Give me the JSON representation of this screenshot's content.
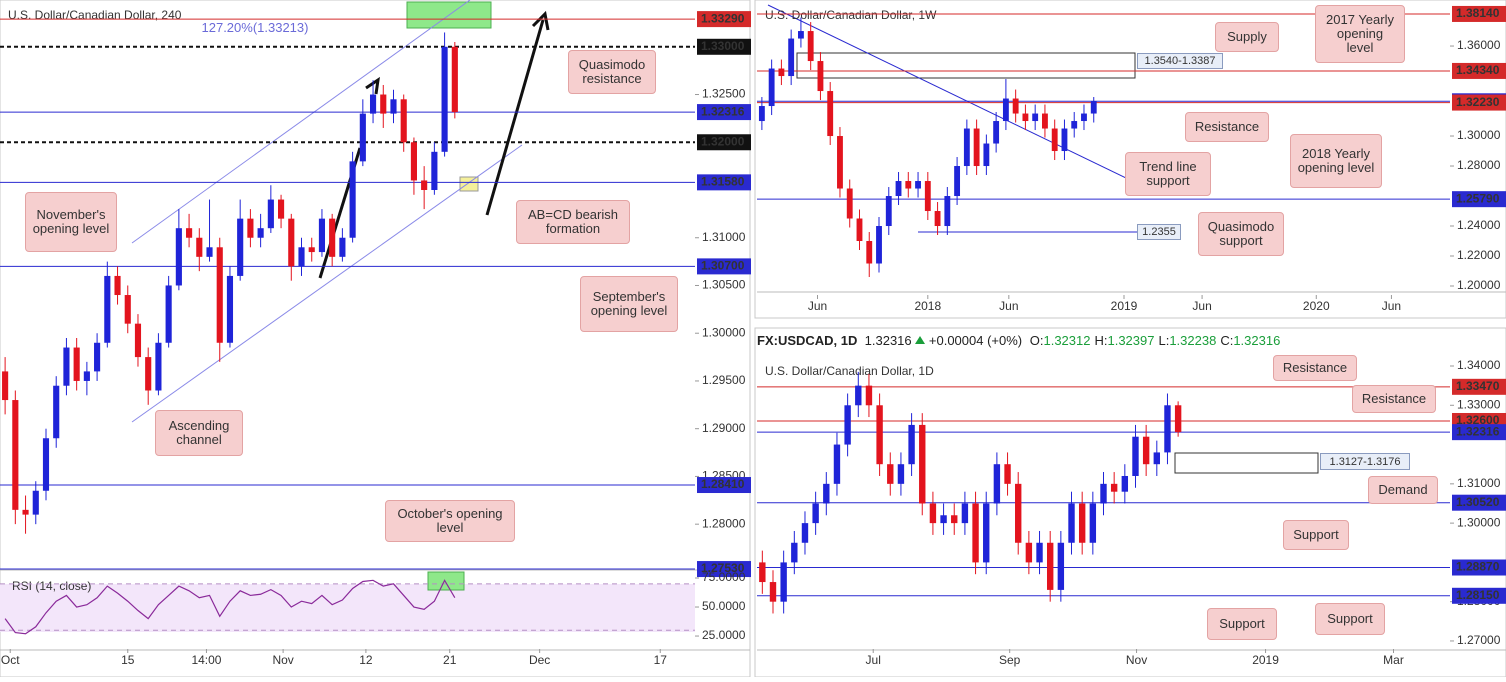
{
  "chart_data": [
    {
      "type": "candlestick",
      "title": "U.S. Dollar/Canadian Dollar, 240",
      "up_color": "#1f24d8",
      "down_color": "#e3141e",
      "ylim": [
        1.2752,
        1.3349
      ],
      "yticks": [
        {
          "value": 1.325,
          "label": "1.32500"
        },
        {
          "value": 1.31,
          "label": "1.31000"
        },
        {
          "value": 1.305,
          "label": "1.30500"
        },
        {
          "value": 1.3,
          "label": "1.30000"
        },
        {
          "value": 1.295,
          "label": "1.29500"
        },
        {
          "value": 1.29,
          "label": "1.29000"
        },
        {
          "value": 1.285,
          "label": "1.28500"
        },
        {
          "value": 1.28,
          "label": "1.28000"
        }
      ],
      "xlim": [
        0,
        68
      ],
      "xticks": [
        {
          "value": 1,
          "label": "Oct"
        },
        {
          "value": 12.5,
          "label": "15"
        },
        {
          "value": 20.2,
          "label": "14:00"
        },
        {
          "value": 27.7,
          "label": "Nov"
        },
        {
          "value": 35.8,
          "label": "12"
        },
        {
          "value": 44,
          "label": "21"
        },
        {
          "value": 52.8,
          "label": "Dec"
        },
        {
          "value": 64.6,
          "label": "17"
        }
      ],
      "levels": [
        {
          "value": 1.3329,
          "label": "1.33290",
          "color": "#d42a2a"
        },
        {
          "value": 1.33,
          "label": "1.33000",
          "color": "#111111"
        },
        {
          "value": 1.32316,
          "label": "1.32316",
          "color": "#2a2ad0"
        },
        {
          "value": 1.32,
          "label": "1.32000",
          "color": "#111111"
        },
        {
          "value": 1.3158,
          "label": "1.31580",
          "color": "#2a2ad0"
        },
        {
          "value": 1.307,
          "label": "1.30700",
          "color": "#2a2ad0"
        },
        {
          "value": 1.2841,
          "label": "1.28410",
          "color": "#2a2ad0"
        },
        {
          "value": 1.2753,
          "label": "1.27530",
          "color": "#2a2ad0"
        }
      ],
      "annotations": [
        "127.20%(1.33213)",
        "Quasimodo resistance",
        "November's opening level",
        "AB=CD bearish formation",
        "September's opening level",
        "Ascending channel",
        "October's opening level"
      ],
      "candles": [
        [
          1.296,
          1.2975,
          1.2915,
          1.293
        ],
        [
          1.293,
          1.294,
          1.28,
          1.2815
        ],
        [
          1.2815,
          1.283,
          1.279,
          1.281
        ],
        [
          1.281,
          1.2845,
          1.28,
          1.2835
        ],
        [
          1.2835,
          1.29,
          1.2825,
          1.289
        ],
        [
          1.289,
          1.2955,
          1.288,
          1.2945
        ],
        [
          1.2945,
          1.2995,
          1.2935,
          1.2985
        ],
        [
          1.2985,
          1.2995,
          1.294,
          1.295
        ],
        [
          1.295,
          1.297,
          1.2935,
          1.296
        ],
        [
          1.296,
          1.3,
          1.295,
          1.299
        ],
        [
          1.299,
          1.3075,
          1.2985,
          1.306
        ],
        [
          1.306,
          1.307,
          1.303,
          1.304
        ],
        [
          1.304,
          1.305,
          1.3,
          1.301
        ],
        [
          1.301,
          1.302,
          1.2965,
          1.2975
        ],
        [
          1.2975,
          1.2985,
          1.2925,
          1.294
        ],
        [
          1.294,
          1.3,
          1.2935,
          1.299
        ],
        [
          1.299,
          1.306,
          1.2985,
          1.305
        ],
        [
          1.305,
          1.313,
          1.3045,
          1.311
        ],
        [
          1.311,
          1.3125,
          1.309,
          1.31
        ],
        [
          1.31,
          1.311,
          1.3065,
          1.308
        ],
        [
          1.308,
          1.314,
          1.3075,
          1.309
        ],
        [
          1.309,
          1.31,
          1.297,
          1.299
        ],
        [
          1.299,
          1.307,
          1.2985,
          1.306
        ],
        [
          1.306,
          1.314,
          1.3055,
          1.312
        ],
        [
          1.312,
          1.313,
          1.309,
          1.31
        ],
        [
          1.31,
          1.3125,
          1.309,
          1.311
        ],
        [
          1.311,
          1.3155,
          1.3105,
          1.314
        ],
        [
          1.314,
          1.3145,
          1.311,
          1.312
        ],
        [
          1.312,
          1.3125,
          1.3055,
          1.307
        ],
        [
          1.307,
          1.31,
          1.306,
          1.309
        ],
        [
          1.309,
          1.31,
          1.3075,
          1.3085
        ],
        [
          1.3085,
          1.313,
          1.308,
          1.312
        ],
        [
          1.312,
          1.3125,
          1.307,
          1.308
        ],
        [
          1.308,
          1.311,
          1.3075,
          1.31
        ],
        [
          1.31,
          1.319,
          1.3095,
          1.318
        ],
        [
          1.318,
          1.3245,
          1.3175,
          1.323
        ],
        [
          1.323,
          1.3265,
          1.322,
          1.325
        ],
        [
          1.325,
          1.326,
          1.3215,
          1.323
        ],
        [
          1.323,
          1.3255,
          1.322,
          1.3245
        ],
        [
          1.3245,
          1.325,
          1.319,
          1.32
        ],
        [
          1.32,
          1.3205,
          1.3145,
          1.316
        ],
        [
          1.316,
          1.3175,
          1.313,
          1.315
        ],
        [
          1.315,
          1.32,
          1.3145,
          1.319
        ],
        [
          1.319,
          1.3315,
          1.3185,
          1.33
        ],
        [
          1.33,
          1.3305,
          1.3225,
          1.32316
        ]
      ]
    },
    {
      "type": "line",
      "title": "RSI (14, close)",
      "color": "#8a2a9a",
      "ylim": [
        14.7,
        81.9
      ],
      "bands": [
        30,
        70
      ],
      "xlim": [
        0,
        68
      ],
      "yticks": [
        {
          "value": 75,
          "label": "75.0000"
        },
        {
          "value": 50,
          "label": "50.0000"
        },
        {
          "value": 25,
          "label": "25.0000"
        }
      ],
      "values": [
        40,
        28,
        27,
        33,
        45,
        55,
        60,
        50,
        52,
        58,
        68,
        62,
        55,
        47,
        40,
        52,
        60,
        68,
        64,
        58,
        60,
        42,
        55,
        64,
        60,
        61,
        65,
        60,
        50,
        55,
        53,
        60,
        52,
        56,
        66,
        72,
        73,
        68,
        70,
        60,
        50,
        48,
        55,
        73,
        58
      ]
    },
    {
      "type": "candlestick",
      "title": "U.S. Dollar/Canadian Dollar, 1W",
      "up_color": "#1f24d8",
      "down_color": "#e3141e",
      "ylim": [
        1.196,
        1.3907
      ],
      "yticks": [
        {
          "value": 1.36,
          "label": "1.36000"
        },
        {
          "value": 1.3,
          "label": "1.30000"
        },
        {
          "value": 1.28,
          "label": "1.28000"
        },
        {
          "value": 1.24,
          "label": "1.24000"
        },
        {
          "value": 1.22,
          "label": "1.22000"
        },
        {
          "value": 1.2,
          "label": "1.20000"
        }
      ],
      "xlim": [
        0,
        71
      ],
      "xticks": [
        {
          "value": 6.2,
          "label": "Jun"
        },
        {
          "value": 17.5,
          "label": "2018"
        },
        {
          "value": 25.8,
          "label": "Jun"
        },
        {
          "value": 37.6,
          "label": "2019"
        },
        {
          "value": 45.6,
          "label": "Jun"
        },
        {
          "value": 57.3,
          "label": "2020"
        },
        {
          "value": 65,
          "label": "Jun"
        }
      ],
      "levels": [
        {
          "value": 1.3814,
          "label": "1.38140",
          "color": "#d42a2a"
        },
        {
          "value": 1.3434,
          "label": "1.34340",
          "color": "#d42a2a"
        },
        {
          "value": 1.32316,
          "label": "1.32316",
          "color": "#2a2ad0"
        },
        {
          "value": 1.3223,
          "label": "1.32230",
          "color": "#d42a2a"
        },
        {
          "value": 1.2579,
          "label": "1.25790",
          "color": "#2a2ad0"
        }
      ],
      "annotations": [
        "Supply",
        "2017 Yearly opening level",
        "Resistance",
        "Trend line support",
        "2018 Yearly opening level",
        "Quasimodo support",
        "1.3540-1.3387",
        "1.2355"
      ],
      "candles": [
        [
          1.31,
          1.326,
          1.304,
          1.32
        ],
        [
          1.32,
          1.351,
          1.314,
          1.345
        ],
        [
          1.345,
          1.351,
          1.334,
          1.34
        ],
        [
          1.34,
          1.371,
          1.334,
          1.365
        ],
        [
          1.365,
          1.379,
          1.359,
          1.37
        ],
        [
          1.37,
          1.376,
          1.344,
          1.35
        ],
        [
          1.35,
          1.356,
          1.324,
          1.33
        ],
        [
          1.33,
          1.336,
          1.294,
          1.3
        ],
        [
          1.3,
          1.306,
          1.259,
          1.265
        ],
        [
          1.265,
          1.271,
          1.239,
          1.245
        ],
        [
          1.245,
          1.251,
          1.224,
          1.23
        ],
        [
          1.23,
          1.236,
          1.206,
          1.215
        ],
        [
          1.215,
          1.246,
          1.209,
          1.24
        ],
        [
          1.24,
          1.266,
          1.234,
          1.26
        ],
        [
          1.26,
          1.276,
          1.254,
          1.27
        ],
        [
          1.27,
          1.276,
          1.259,
          1.265
        ],
        [
          1.265,
          1.276,
          1.259,
          1.27
        ],
        [
          1.27,
          1.276,
          1.244,
          1.25
        ],
        [
          1.25,
          1.256,
          1.234,
          1.24
        ],
        [
          1.24,
          1.266,
          1.234,
          1.26
        ],
        [
          1.26,
          1.286,
          1.254,
          1.28
        ],
        [
          1.28,
          1.311,
          1.274,
          1.305
        ],
        [
          1.305,
          1.311,
          1.274,
          1.28
        ],
        [
          1.28,
          1.301,
          1.274,
          1.295
        ],
        [
          1.295,
          1.316,
          1.289,
          1.31
        ],
        [
          1.31,
          1.338,
          1.304,
          1.325
        ],
        [
          1.325,
          1.331,
          1.309,
          1.315
        ],
        [
          1.315,
          1.321,
          1.304,
          1.31
        ],
        [
          1.31,
          1.321,
          1.304,
          1.315
        ],
        [
          1.315,
          1.321,
          1.299,
          1.305
        ],
        [
          1.305,
          1.311,
          1.284,
          1.29
        ],
        [
          1.29,
          1.311,
          1.284,
          1.305
        ],
        [
          1.305,
          1.316,
          1.299,
          1.31
        ],
        [
          1.31,
          1.321,
          1.304,
          1.315
        ],
        [
          1.315,
          1.326,
          1.309,
          1.32316
        ]
      ]
    },
    {
      "type": "candlestick",
      "title": "U.S. Dollar/Canadian Dollar, 1D",
      "up_color": "#1f24d8",
      "down_color": "#e3141e",
      "quote": {
        "ticker": "FX:USDCAD, 1D",
        "last": "1.32316",
        "change": "+0.00004 (+0%)",
        "ohlc": [
          {
            "label": "O:",
            "value": "1.32312"
          },
          {
            "label": "H:",
            "value": "1.32397"
          },
          {
            "label": "L:",
            "value": "1.32238"
          },
          {
            "label": "C:",
            "value": "1.32316"
          }
        ]
      },
      "ylim": [
        1.2677,
        1.3428
      ],
      "yticks": [
        {
          "value": 1.34,
          "label": "1.34000"
        },
        {
          "value": 1.33,
          "label": "1.33000"
        },
        {
          "value": 1.31,
          "label": "1.31000"
        },
        {
          "value": 1.3,
          "label": "1.30000"
        },
        {
          "value": 1.28,
          "label": "1.28000"
        },
        {
          "value": 1.27,
          "label": "1.27000"
        }
      ],
      "xlim": [
        0,
        65
      ],
      "xticks": [
        {
          "value": 10.9,
          "label": "Jul"
        },
        {
          "value": 23.7,
          "label": "Sep"
        },
        {
          "value": 35.6,
          "label": "Nov"
        },
        {
          "value": 47.7,
          "label": "2019"
        },
        {
          "value": 59.7,
          "label": "Mar"
        }
      ],
      "levels": [
        {
          "value": 1.3347,
          "label": "1.33470",
          "color": "#d42a2a"
        },
        {
          "value": 1.326,
          "label": "1.32600",
          "color": "#d42a2a"
        },
        {
          "value": 1.32316,
          "label": "1.32316",
          "color": "#2a2ad0"
        },
        {
          "value": 1.3052,
          "label": "1.30520",
          "color": "#2a2ad0"
        },
        {
          "value": 1.2887,
          "label": "1.28870",
          "color": "#2a2ad0"
        },
        {
          "value": 1.2815,
          "label": "1.28150",
          "color": "#2a2ad0"
        }
      ],
      "annotations": [
        "Resistance",
        "Resistance",
        "1.3127-1.3176",
        "Demand",
        "Support",
        "Support",
        "Support"
      ],
      "candles": [
        [
          1.29,
          1.293,
          1.282,
          1.285
        ],
        [
          1.285,
          1.288,
          1.277,
          1.28
        ],
        [
          1.28,
          1.293,
          1.277,
          1.29
        ],
        [
          1.29,
          1.298,
          1.287,
          1.295
        ],
        [
          1.295,
          1.303,
          1.292,
          1.3
        ],
        [
          1.3,
          1.308,
          1.297,
          1.305
        ],
        [
          1.305,
          1.313,
          1.302,
          1.31
        ],
        [
          1.31,
          1.323,
          1.307,
          1.32
        ],
        [
          1.32,
          1.333,
          1.317,
          1.33
        ],
        [
          1.33,
          1.3385,
          1.327,
          1.335
        ],
        [
          1.335,
          1.338,
          1.327,
          1.33
        ],
        [
          1.33,
          1.333,
          1.312,
          1.315
        ],
        [
          1.315,
          1.318,
          1.307,
          1.31
        ],
        [
          1.31,
          1.318,
          1.307,
          1.315
        ],
        [
          1.315,
          1.328,
          1.312,
          1.325
        ],
        [
          1.325,
          1.328,
          1.302,
          1.305
        ],
        [
          1.305,
          1.308,
          1.297,
          1.3
        ],
        [
          1.3,
          1.305,
          1.297,
          1.302
        ],
        [
          1.302,
          1.305,
          1.297,
          1.3
        ],
        [
          1.3,
          1.308,
          1.297,
          1.305
        ],
        [
          1.305,
          1.308,
          1.287,
          1.29
        ],
        [
          1.29,
          1.308,
          1.287,
          1.305
        ],
        [
          1.305,
          1.318,
          1.302,
          1.315
        ],
        [
          1.315,
          1.318,
          1.307,
          1.31
        ],
        [
          1.31,
          1.313,
          1.292,
          1.295
        ],
        [
          1.295,
          1.298,
          1.287,
          1.29
        ],
        [
          1.29,
          1.298,
          1.287,
          1.295
        ],
        [
          1.295,
          1.298,
          1.28,
          1.283
        ],
        [
          1.283,
          1.298,
          1.28,
          1.295
        ],
        [
          1.295,
          1.308,
          1.292,
          1.305
        ],
        [
          1.305,
          1.308,
          1.292,
          1.295
        ],
        [
          1.295,
          1.308,
          1.292,
          1.305
        ],
        [
          1.305,
          1.313,
          1.302,
          1.31
        ],
        [
          1.31,
          1.313,
          1.305,
          1.308
        ],
        [
          1.308,
          1.315,
          1.305,
          1.312
        ],
        [
          1.312,
          1.325,
          1.309,
          1.322
        ],
        [
          1.322,
          1.325,
          1.312,
          1.315
        ],
        [
          1.315,
          1.321,
          1.312,
          1.318
        ],
        [
          1.318,
          1.333,
          1.315,
          1.33
        ],
        [
          1.33,
          1.331,
          1.322,
          1.32316
        ]
      ]
    }
  ]
}
